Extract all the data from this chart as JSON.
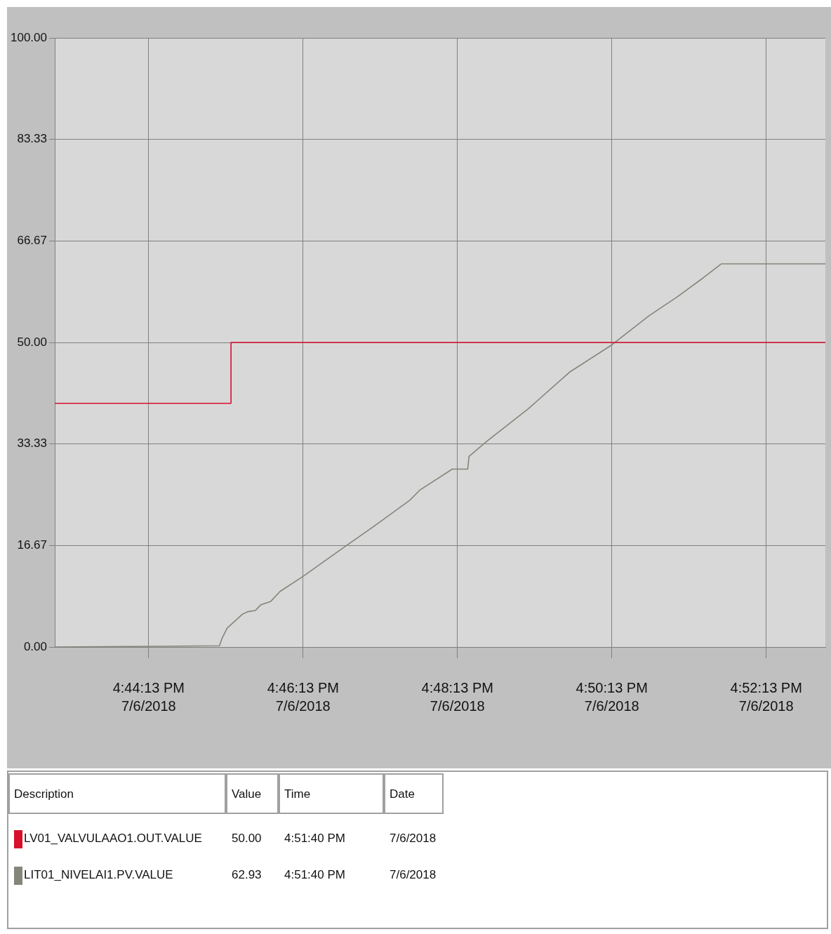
{
  "chart_data": {
    "type": "line",
    "marker": "none",
    "grid": true,
    "legend": "bottom",
    "xlim": [
      "2018-07-06T16:43:00",
      "2018-07-06T16:52:59"
    ],
    "xticks": [
      {
        "value": "2018-07-06T16:44:13",
        "label": "4:44:13 PM 7/6/2018"
      },
      {
        "value": "2018-07-06T16:46:13",
        "label": "4:46:13 PM 7/6/2018"
      },
      {
        "value": "2018-07-06T16:48:13",
        "label": "4:48:13 PM 7/6/2018"
      },
      {
        "value": "2018-07-06T16:50:13",
        "label": "4:50:13 PM 7/6/2018"
      },
      {
        "value": "2018-07-06T16:52:13",
        "label": "4:52:13 PM 7/6/2018"
      }
    ],
    "ylim": [
      0,
      100
    ],
    "yticks": [
      {
        "value": 0,
        "label": "0.00"
      },
      {
        "value": 16.67,
        "label": "16.67"
      },
      {
        "value": 33.33,
        "label": "33.33"
      },
      {
        "value": 50,
        "label": "50.00"
      },
      {
        "value": 66.67,
        "label": "66.67"
      },
      {
        "value": 83.33,
        "label": "83.33"
      },
      {
        "value": 100,
        "label": "100.00"
      }
    ],
    "series": [
      {
        "name": "LV01_VALVULAAO1.OUT.VALUE",
        "type": "step",
        "color": "#d8102a",
        "x": [
          "2018-07-06T16:43:00",
          "2018-07-06T16:45:17",
          "2018-07-06T16:52:59"
        ],
        "values": [
          40,
          50,
          50
        ]
      },
      {
        "name": "LIT01_NIVELAI1.PV.VALUE",
        "color": "#85857a",
        "x": [
          "2018-07-06T16:43:00",
          "2018-07-06T16:45:08",
          "2018-07-06T16:45:10",
          "2018-07-06T16:45:14",
          "2018-07-06T16:45:26",
          "2018-07-06T16:45:30",
          "2018-07-06T16:45:36",
          "2018-07-06T16:45:40",
          "2018-07-06T16:45:48",
          "2018-07-06T16:45:55",
          "2018-07-06T16:46:13",
          "2018-07-06T16:46:45",
          "2018-07-06T16:47:08",
          "2018-07-06T16:47:36",
          "2018-07-06T16:47:44",
          "2018-07-06T16:48:09",
          "2018-07-06T16:48:21",
          "2018-07-06T16:48:22",
          "2018-07-06T16:48:36",
          "2018-07-06T16:49:08",
          "2018-07-06T16:49:40",
          "2018-07-06T16:50:13",
          "2018-07-06T16:50:42",
          "2018-07-06T16:51:04",
          "2018-07-06T16:51:24",
          "2018-07-06T16:51:38",
          "2018-07-06T16:52:59"
        ],
        "values": [
          0,
          0.2,
          1.4,
          3.1,
          5.4,
          5.8,
          6.0,
          6.9,
          7.5,
          9.1,
          11.6,
          16.4,
          19.8,
          24.1,
          25.8,
          29.2,
          29.2,
          31.3,
          33.8,
          39.1,
          45.1,
          49.6,
          54.4,
          57.5,
          60.6,
          62.9,
          62.9
        ]
      }
    ],
    "annotations": [
      "Description",
      "Value",
      "Time",
      "Date",
      "50.00",
      "4:51:40 PM",
      "7/6/2018",
      "62.93",
      "4:51:40 PM",
      "7/6/2018"
    ]
  }
}
